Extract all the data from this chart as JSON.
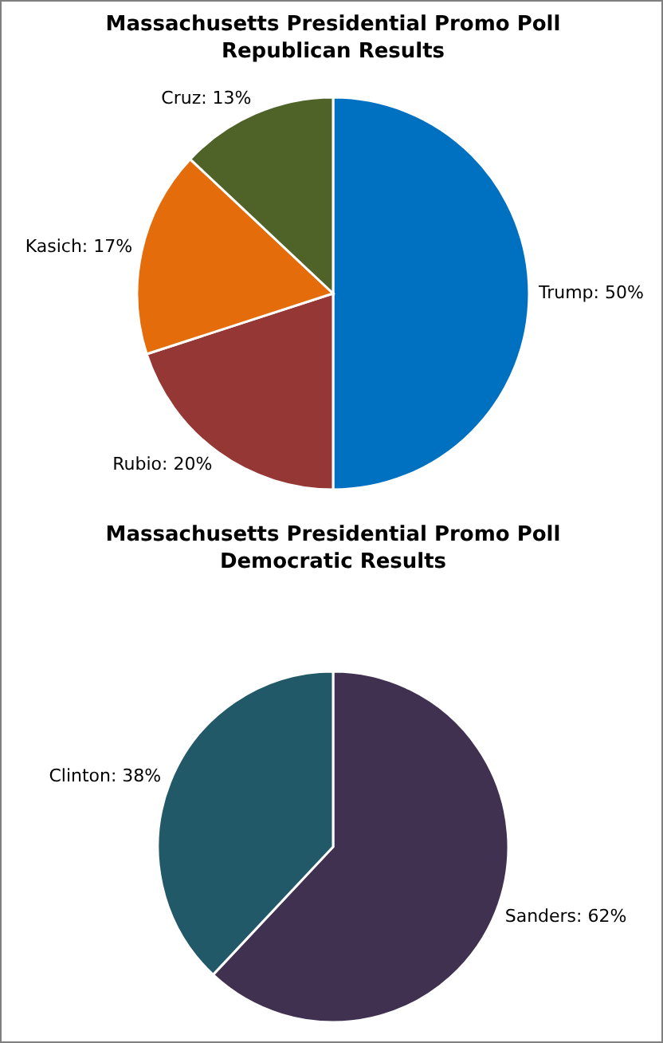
{
  "chart_data": [
    {
      "type": "pie",
      "title": "Massachusetts Presidential Promo Poll\nRepublican Results",
      "categories": [
        "Trump",
        "Rubio",
        "Kasich",
        "Cruz"
      ],
      "values": [
        50,
        20,
        17,
        13
      ],
      "value_labels": [
        "50%",
        "20%",
        "17%",
        "13%"
      ],
      "colors": [
        "#0070c0",
        "#953735",
        "#e46c0a",
        "#4f6228"
      ],
      "legend": false
    },
    {
      "type": "pie",
      "title": "Massachusetts Presidential Promo Poll\nDemocratic Results",
      "categories": [
        "Sanders",
        "Clinton"
      ],
      "values": [
        62,
        38
      ],
      "value_labels": [
        "62%",
        "38%"
      ],
      "colors": [
        "#403151",
        "#215968"
      ],
      "legend": false
    }
  ]
}
